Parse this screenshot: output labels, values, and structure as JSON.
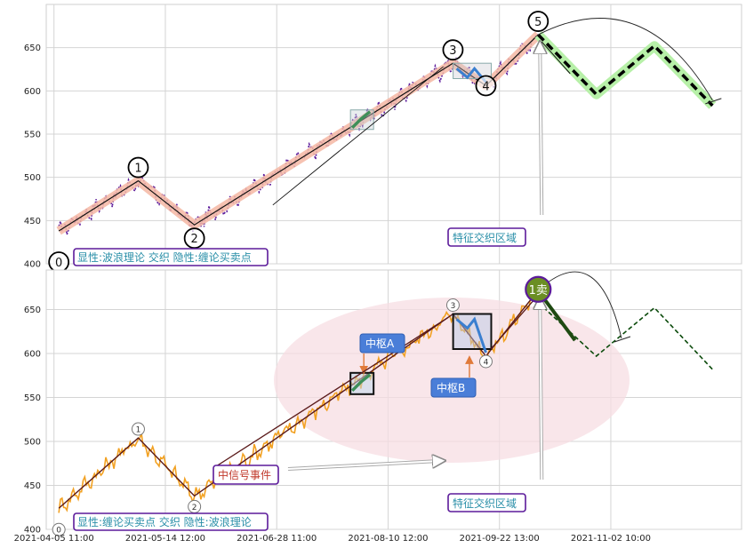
{
  "chart_data": [
    {
      "type": "line",
      "ylim": [
        400,
        700
      ],
      "yticks": [
        400,
        450,
        500,
        550,
        600,
        650
      ],
      "grid": true,
      "wave_points": [
        {
          "label": "0",
          "x": 0.5,
          "y": 438
        },
        {
          "label": "1",
          "x": 8.7,
          "y": 496
        },
        {
          "label": "2",
          "x": 14.5,
          "y": 445
        },
        {
          "label": "3",
          "x": 41.2,
          "y": 632
        },
        {
          "label": "4",
          "x": 44.6,
          "y": 606
        },
        {
          "label": "5",
          "x": 50.0,
          "y": 665
        }
      ],
      "forecast": [
        {
          "x": 50.0,
          "y": 665
        },
        {
          "x": 56.0,
          "y": 596
        },
        {
          "x": 62.0,
          "y": 652
        },
        {
          "x": 68.0,
          "y": 583
        }
      ],
      "annotations": {
        "legend": "显性:波浪理论 交织 隐性:缠论买卖点",
        "region": "特征交织区域"
      }
    },
    {
      "type": "line",
      "ylim": [
        400,
        695
      ],
      "yticks": [
        400,
        450,
        500,
        550,
        600,
        650
      ],
      "grid": true,
      "wave_points": [
        {
          "label": "0",
          "x": 0.5,
          "y": 424
        },
        {
          "label": "1",
          "x": 8.7,
          "y": 504
        },
        {
          "label": "2",
          "x": 14.5,
          "y": 438
        },
        {
          "label": "3",
          "x": 41.2,
          "y": 645
        },
        {
          "label": "4",
          "x": 44.6,
          "y": 597
        },
        {
          "label": "1卖",
          "x": 50.0,
          "y": 672
        }
      ],
      "forecast": [
        {
          "x": 50.0,
          "y": 658
        },
        {
          "x": 56.0,
          "y": 597
        },
        {
          "x": 62.0,
          "y": 652
        },
        {
          "x": 68.0,
          "y": 582
        }
      ],
      "annotations": {
        "legend": "显性:缠论买卖点 交织 隐性:波浪理论",
        "region": "特征交织区域",
        "signal": "中信号事件",
        "pivot_a": "中枢A",
        "pivot_b": "中枢B"
      }
    }
  ],
  "xaxis": {
    "ticks": [
      {
        "label": "2021-04-05 11:00",
        "x": 0
      },
      {
        "label": "2021-05-14 12:00",
        "x": 11.5
      },
      {
        "label": "2021-06-28 11:00",
        "x": 23
      },
      {
        "label": "2021-08-10 12:00",
        "x": 34.5
      },
      {
        "label": "2021-09-22 13:00",
        "x": 46
      },
      {
        "label": "2021-11-02 10:00",
        "x": 57.5
      }
    ],
    "xlim": [
      -0.8,
      71
    ]
  },
  "colors": {
    "price_top": "#5b1a9a",
    "price_bottom": "#f2a122",
    "wave_band": "#f4b7a3",
    "forecast_band": "#b7f0a8",
    "box_border": "#6a1b8a",
    "box_text": "#2a8fa8",
    "pivot_fill": "#4a7ed8",
    "signal_text": "#c0392b",
    "sell_fill": "#6b8e23",
    "ellipse": "#f7dde3"
  }
}
